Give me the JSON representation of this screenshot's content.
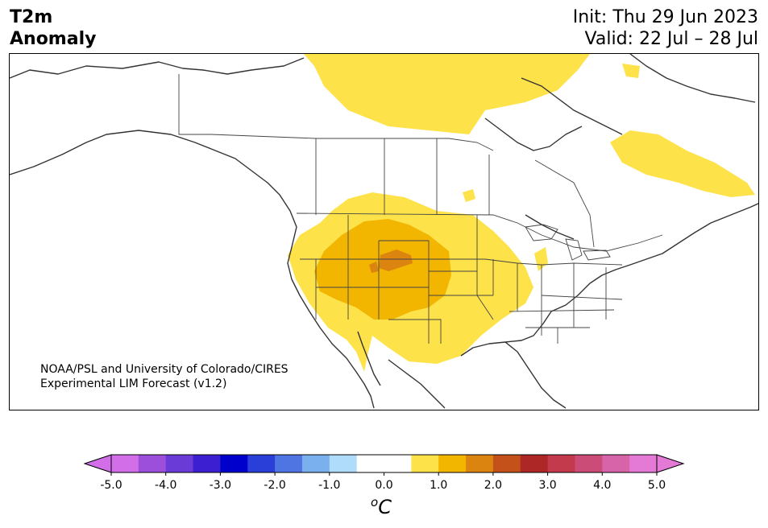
{
  "header": {
    "title_line1": "T2m",
    "title_line2": "Anomaly",
    "init": "Init: Thu 29 Jun 2023",
    "valid": "Valid: 22 Jul – 28 Jul"
  },
  "credit": {
    "line1": "NOAA/PSL and University of Colorado/CIRES",
    "line2": "Experimental LIM Forecast (v1.2)"
  },
  "colorbar": {
    "ticks": [
      "-5.0",
      "-4.0",
      "-3.0",
      "-2.0",
      "-1.0",
      "0.0",
      "1.0",
      "2.0",
      "3.0",
      "4.0",
      "5.0"
    ],
    "unit_sup": "o",
    "unit": "C",
    "colors": [
      "#d16ee8",
      "#9b4fdb",
      "#6a3bd6",
      "#3c1fd0",
      "#0000cc",
      "#2a3fd8",
      "#4f75e3",
      "#7bb0ef",
      "#aedcfa",
      "#ffffff",
      "#ffffff",
      "#fde24a",
      "#f2b500",
      "#dc8410",
      "#c4511a",
      "#ac2726",
      "#c23a4c",
      "#cc4c78",
      "#d764a8",
      "#e57ad6"
    ],
    "extend_min_color": "#d16ee8",
    "extend_max_color": "#e57ad6"
  },
  "legend_colors": {
    "level1": "#fde24a",
    "level2": "#f2b500",
    "level3": "#dc8410",
    "coast": "#333333"
  }
}
